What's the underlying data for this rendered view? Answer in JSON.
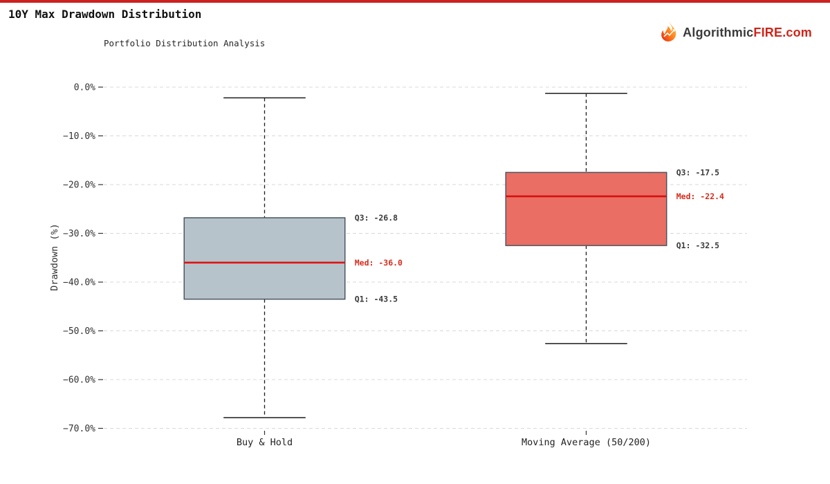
{
  "page": {
    "title": "10Y Max Drawdown Distribution",
    "accent_bar_color": "#cc2222",
    "brand": {
      "icon": "flame-icon",
      "prefix": "Algorithmic",
      "highlight": "FIRE",
      "suffix": ".com",
      "prefix_color": "#3a3a3a",
      "highlight_color": "#d02418"
    }
  },
  "chart_data": {
    "type": "boxplot",
    "title": "Portfolio Distribution Analysis",
    "ylabel": "Drawdown (%)",
    "ylim": [
      -70,
      0
    ],
    "grid": true,
    "legend": "none",
    "yticks": [
      {
        "value": 0,
        "label": "0.0%"
      },
      {
        "value": -10,
        "label": "−10.0%"
      },
      {
        "value": -20,
        "label": "−20.0%"
      },
      {
        "value": -30,
        "label": "−30.0%"
      },
      {
        "value": -40,
        "label": "−40.0%"
      },
      {
        "value": -50,
        "label": "−50.0%"
      },
      {
        "value": -60,
        "label": "−60.0%"
      },
      {
        "value": -70,
        "label": "−70.0%"
      }
    ],
    "colors": {
      "grid": "#d8d8d8",
      "whisker": "#1a1a1a",
      "cap": "#1a1a1a",
      "box_edge": "#4b5560",
      "tick_text": "#333333",
      "annotation_text": "#3a3a3a",
      "annotation_median": "#d62b1d"
    },
    "series": [
      {
        "name": "Buy & Hold",
        "whisker_high": -2.2,
        "q3": -26.8,
        "median": -36.0,
        "q1": -43.5,
        "whisker_low": -67.8,
        "box_fill": "#b6c3cb",
        "median_color": "#e01212",
        "labels": {
          "q3": "Q3: -26.8",
          "med": "Med: -36.0",
          "q1": "Q1: -43.5"
        }
      },
      {
        "name": "Moving Average (50/200)",
        "whisker_high": -1.3,
        "q3": -17.5,
        "median": -22.4,
        "q1": -32.5,
        "whisker_low": -52.6,
        "box_fill": "#ea6e64",
        "median_color": "#d61010",
        "labels": {
          "q3": "Q3: -17.5",
          "med": "Med: -22.4",
          "q1": "Q1: -32.5"
        }
      }
    ]
  }
}
